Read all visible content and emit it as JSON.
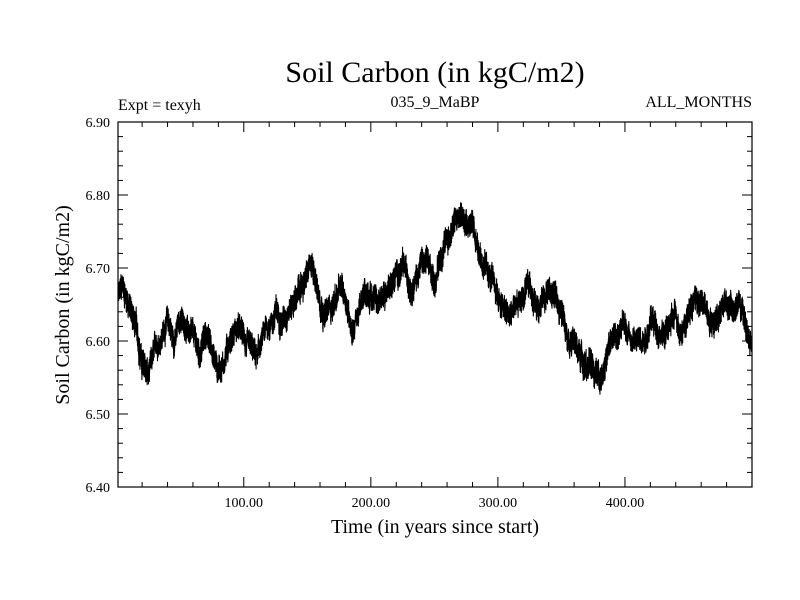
{
  "chart_data": {
    "type": "line",
    "title": "Soil Carbon (in kgC/m2)",
    "subtitle_left": "Expt = texyh",
    "subtitle_center": "035_9_MaBP",
    "subtitle_right": "ALL_MONTHS",
    "xlabel": "Time (in years since start)",
    "ylabel": "Soil Carbon (in kgC/m2)",
    "xlim": [
      1,
      500
    ],
    "ylim": [
      6.4,
      6.9
    ],
    "xticks": [
      100,
      200,
      300,
      400
    ],
    "xtick_labels": [
      "100.00",
      "200.00",
      "300.00",
      "400.00"
    ],
    "yticks": [
      6.4,
      6.5,
      6.6,
      6.7,
      6.8,
      6.9
    ],
    "ytick_labels": [
      "6.40",
      "6.50",
      "6.60",
      "6.70",
      "6.80",
      "6.90"
    ],
    "grid": false,
    "line_color": "#000000",
    "series": [
      {
        "x": [
          1,
          5,
          10,
          15,
          20,
          25,
          30,
          35,
          40,
          45,
          50,
          55,
          60,
          65,
          70,
          75,
          80,
          85,
          90,
          95,
          100,
          105,
          110,
          115,
          120,
          125,
          130,
          135,
          140,
          145,
          150,
          155,
          160,
          165,
          170,
          175,
          180,
          185,
          190,
          195,
          200,
          205,
          210,
          215,
          220,
          225,
          230,
          235,
          240,
          245,
          250,
          255,
          260,
          265,
          270,
          275,
          280,
          285,
          290,
          295,
          300,
          305,
          310,
          315,
          320,
          325,
          330,
          335,
          340,
          345,
          350,
          355,
          360,
          365,
          370,
          375,
          380,
          385,
          390,
          395,
          400,
          405,
          410,
          415,
          420,
          425,
          430,
          435,
          440,
          445,
          450,
          455,
          460,
          465,
          470,
          475,
          480,
          485,
          490,
          495,
          500
        ],
        "y": [
          6.66,
          6.67,
          6.65,
          6.62,
          6.57,
          6.55,
          6.58,
          6.61,
          6.63,
          6.6,
          6.63,
          6.62,
          6.6,
          6.58,
          6.61,
          6.59,
          6.56,
          6.58,
          6.61,
          6.62,
          6.6,
          6.58,
          6.57,
          6.6,
          6.62,
          6.64,
          6.63,
          6.65,
          6.66,
          6.67,
          6.69,
          6.7,
          6.66,
          6.64,
          6.65,
          6.67,
          6.66,
          6.62,
          6.64,
          6.66,
          6.67,
          6.65,
          6.66,
          6.68,
          6.69,
          6.7,
          6.68,
          6.69,
          6.71,
          6.7,
          6.68,
          6.72,
          6.74,
          6.76,
          6.77,
          6.78,
          6.76,
          6.73,
          6.7,
          6.68,
          6.66,
          6.64,
          6.63,
          6.65,
          6.66,
          6.67,
          6.65,
          6.66,
          6.67,
          6.66,
          6.64,
          6.62,
          6.6,
          6.58,
          6.57,
          6.56,
          6.55,
          6.58,
          6.6,
          6.61,
          6.62,
          6.61,
          6.6,
          6.61,
          6.63,
          6.62,
          6.61,
          6.62,
          6.63,
          6.62,
          6.64,
          6.66,
          6.65,
          6.64,
          6.63,
          6.65,
          6.66,
          6.64,
          6.65,
          6.62,
          6.59
        ],
        "amplitude": [
          0.035,
          0.035,
          0.035,
          0.04,
          0.04,
          0.035,
          0.03,
          0.03,
          0.035,
          0.035,
          0.03,
          0.03,
          0.035,
          0.035,
          0.035,
          0.035,
          0.04,
          0.035,
          0.035,
          0.03,
          0.035,
          0.035,
          0.035,
          0.03,
          0.03,
          0.035,
          0.035,
          0.03,
          0.035,
          0.035,
          0.035,
          0.035,
          0.04,
          0.035,
          0.035,
          0.035,
          0.035,
          0.035,
          0.03,
          0.035,
          0.035,
          0.035,
          0.035,
          0.035,
          0.035,
          0.035,
          0.035,
          0.035,
          0.035,
          0.035,
          0.035,
          0.035,
          0.035,
          0.035,
          0.035,
          0.035,
          0.035,
          0.035,
          0.035,
          0.035,
          0.035,
          0.035,
          0.035,
          0.035,
          0.035,
          0.035,
          0.035,
          0.035,
          0.035,
          0.035,
          0.035,
          0.035,
          0.035,
          0.035,
          0.04,
          0.04,
          0.035,
          0.035,
          0.035,
          0.035,
          0.035,
          0.035,
          0.035,
          0.035,
          0.035,
          0.035,
          0.035,
          0.035,
          0.035,
          0.035,
          0.035,
          0.035,
          0.035,
          0.035,
          0.035,
          0.035,
          0.035,
          0.035,
          0.035,
          0.035,
          0.035
        ]
      }
    ]
  }
}
